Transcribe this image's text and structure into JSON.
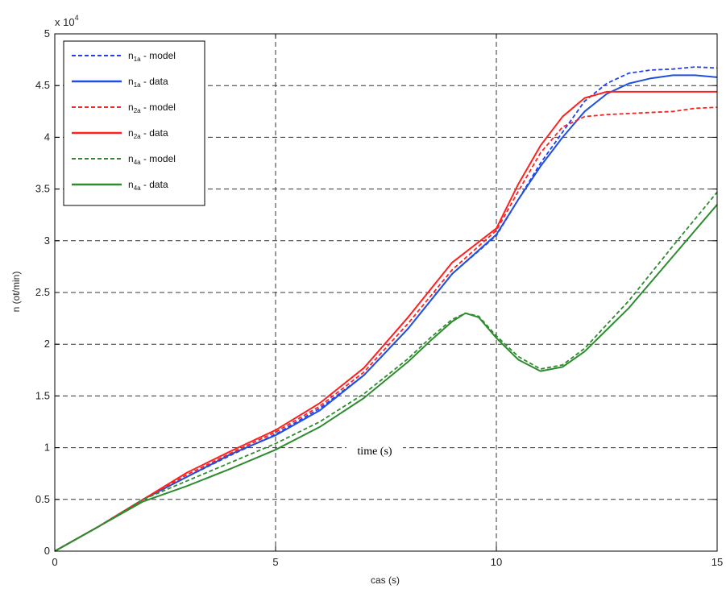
{
  "chart_data": {
    "type": "line",
    "xlabel": "cas (s)",
    "ylabel": "n (ot/min)",
    "multiplier": "x 10",
    "multiplier_exp": "4",
    "annotation": "time (s)",
    "xlim": [
      0,
      15
    ],
    "ylim": [
      0,
      5
    ],
    "xticks": [
      0,
      5,
      10,
      15
    ],
    "yticks": [
      0,
      0.5,
      1,
      1.5,
      2,
      2.5,
      3,
      3.5,
      4,
      4.5,
      5
    ],
    "ytick_labels": [
      "0",
      "0.5",
      "1",
      "1.5",
      "2",
      "2.5",
      "3",
      "3.5",
      "4",
      "4.5",
      "5"
    ],
    "grid": true,
    "legend_position": "top-left",
    "series": [
      {
        "name": "n1a - model",
        "label_main": "n",
        "label_sub": "1a",
        "label_rest": " - model",
        "color": "#1f3fff",
        "dash": "dashed",
        "points": [
          [
            0,
            0
          ],
          [
            1,
            0.24
          ],
          [
            2,
            0.5
          ],
          [
            3,
            0.72
          ],
          [
            4,
            0.93
          ],
          [
            5,
            1.13
          ],
          [
            6,
            1.38
          ],
          [
            7,
            1.7
          ],
          [
            8,
            2.15
          ],
          [
            9,
            2.68
          ],
          [
            10,
            3.05
          ],
          [
            10.5,
            3.4
          ],
          [
            11,
            3.75
          ],
          [
            11.5,
            4.05
          ],
          [
            12,
            4.35
          ],
          [
            12.5,
            4.52
          ],
          [
            13,
            4.62
          ],
          [
            13.5,
            4.65
          ],
          [
            14,
            4.66
          ],
          [
            14.5,
            4.68
          ],
          [
            15,
            4.67
          ]
        ]
      },
      {
        "name": "n1a - data",
        "label_main": "n",
        "label_sub": "1a",
        "label_rest": " - data",
        "color": "#1f4fe0",
        "dash": "solid",
        "points": [
          [
            0,
            0
          ],
          [
            1,
            0.24
          ],
          [
            2,
            0.5
          ],
          [
            3,
            0.72
          ],
          [
            4,
            0.94
          ],
          [
            5,
            1.12
          ],
          [
            6,
            1.36
          ],
          [
            7,
            1.7
          ],
          [
            8,
            2.15
          ],
          [
            9,
            2.68
          ],
          [
            10,
            3.06
          ],
          [
            10.5,
            3.4
          ],
          [
            11,
            3.72
          ],
          [
            11.5,
            4.0
          ],
          [
            12,
            4.25
          ],
          [
            12.5,
            4.42
          ],
          [
            13,
            4.52
          ],
          [
            13.5,
            4.57
          ],
          [
            14,
            4.6
          ],
          [
            14.5,
            4.6
          ],
          [
            15,
            4.58
          ]
        ]
      },
      {
        "name": "n2a - model",
        "label_main": "n",
        "label_sub": "2a",
        "label_rest": " - model",
        "color": "#ff2020",
        "dash": "dashed",
        "points": [
          [
            0,
            0
          ],
          [
            1,
            0.24
          ],
          [
            2,
            0.5
          ],
          [
            3,
            0.74
          ],
          [
            4,
            0.95
          ],
          [
            5,
            1.15
          ],
          [
            6,
            1.4
          ],
          [
            7,
            1.73
          ],
          [
            8,
            2.2
          ],
          [
            9,
            2.72
          ],
          [
            10,
            3.1
          ],
          [
            10.5,
            3.48
          ],
          [
            11,
            3.85
          ],
          [
            11.5,
            4.1
          ],
          [
            12,
            4.2
          ],
          [
            12.5,
            4.22
          ],
          [
            13,
            4.23
          ],
          [
            13.5,
            4.24
          ],
          [
            14,
            4.25
          ],
          [
            14.5,
            4.28
          ],
          [
            15,
            4.29
          ]
        ]
      },
      {
        "name": "n2a - data",
        "label_main": "n",
        "label_sub": "2a",
        "label_rest": " - data",
        "color": "#ff2020",
        "dash": "solid",
        "points": [
          [
            0,
            0
          ],
          [
            1,
            0.24
          ],
          [
            2,
            0.5
          ],
          [
            3,
            0.76
          ],
          [
            4,
            0.97
          ],
          [
            5,
            1.17
          ],
          [
            6,
            1.43
          ],
          [
            7,
            1.77
          ],
          [
            8,
            2.26
          ],
          [
            9,
            2.79
          ],
          [
            10,
            3.12
          ],
          [
            10.5,
            3.55
          ],
          [
            11,
            3.92
          ],
          [
            11.5,
            4.2
          ],
          [
            12,
            4.38
          ],
          [
            12.5,
            4.44
          ],
          [
            13,
            4.44
          ],
          [
            13.5,
            4.44
          ],
          [
            14,
            4.44
          ],
          [
            14.5,
            4.44
          ],
          [
            15,
            4.44
          ]
        ]
      },
      {
        "name": "n4a - model",
        "label_main": "n",
        "label_sub": "4a",
        "label_rest": " - model",
        "color": "#2e8b2e",
        "dash": "dashed",
        "points": [
          [
            0,
            0
          ],
          [
            1,
            0.24
          ],
          [
            2,
            0.5
          ],
          [
            3,
            0.68
          ],
          [
            4,
            0.86
          ],
          [
            5,
            1.04
          ],
          [
            6,
            1.25
          ],
          [
            7,
            1.52
          ],
          [
            8,
            1.86
          ],
          [
            8.5,
            2.06
          ],
          [
            9,
            2.24
          ],
          [
            9.3,
            2.3
          ],
          [
            9.6,
            2.27
          ],
          [
            10,
            2.08
          ],
          [
            10.5,
            1.88
          ],
          [
            11,
            1.76
          ],
          [
            11.5,
            1.8
          ],
          [
            12,
            1.96
          ],
          [
            13,
            2.42
          ],
          [
            14,
            2.95
          ],
          [
            15,
            3.47
          ]
        ]
      },
      {
        "name": "n4a - data",
        "label_main": "n",
        "label_sub": "4a",
        "label_rest": " - data",
        "color": "#2e8b2e",
        "dash": "solid",
        "points": [
          [
            0,
            0
          ],
          [
            1,
            0.24
          ],
          [
            2,
            0.48
          ],
          [
            3,
            0.63
          ],
          [
            4,
            0.8
          ],
          [
            5,
            0.98
          ],
          [
            6,
            1.2
          ],
          [
            7,
            1.48
          ],
          [
            8,
            1.83
          ],
          [
            8.5,
            2.03
          ],
          [
            9,
            2.22
          ],
          [
            9.3,
            2.3
          ],
          [
            9.6,
            2.26
          ],
          [
            10,
            2.06
          ],
          [
            10.5,
            1.85
          ],
          [
            11,
            1.74
          ],
          [
            11.5,
            1.78
          ],
          [
            12,
            1.93
          ],
          [
            13,
            2.35
          ],
          [
            14,
            2.85
          ],
          [
            15,
            3.35
          ]
        ]
      }
    ]
  }
}
